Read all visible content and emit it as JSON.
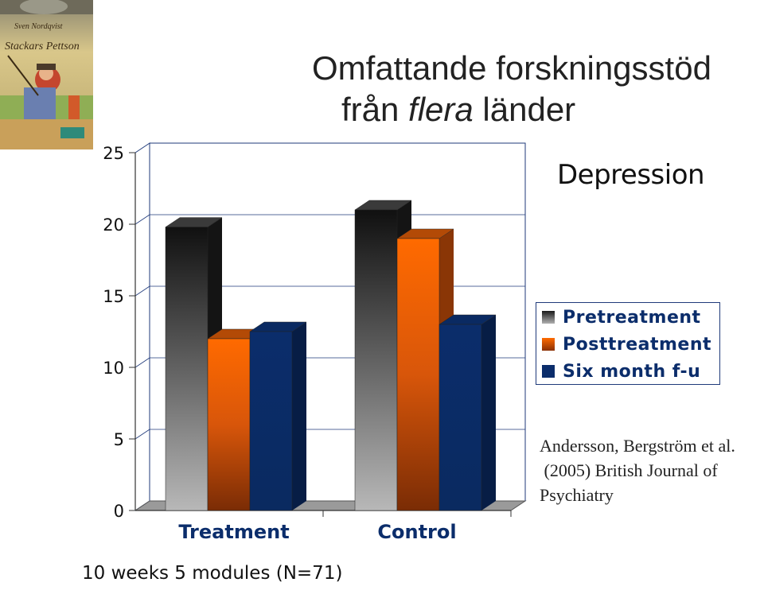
{
  "slide": {
    "title_line1": "Omfattande forskningsstöd",
    "title_line2_pre": "från ",
    "title_line2_em": "flera",
    "title_line2_post": " länder",
    "citation": [
      "Andersson, Bergström et al.",
      " (2005) British Journal of",
      "Psychiatry"
    ],
    "note": "10 weeks 5 modules (N=71)",
    "book_cover": {
      "author": "Sven Nordqvist",
      "title": "Stackars Pettson"
    }
  },
  "chart_data": {
    "type": "bar",
    "title": "Depression",
    "categories": [
      "Treatment",
      "Control"
    ],
    "series": [
      {
        "name": "Pretreatment",
        "values": [
          19.8,
          21.0
        ],
        "color": "#5a5a5a"
      },
      {
        "name": "Posttreatment",
        "values": [
          12.0,
          19.0
        ],
        "color": "#e8640a"
      },
      {
        "name": "Six month f-u",
        "values": [
          12.5,
          13.0
        ],
        "color": "#0b2d6b"
      }
    ],
    "ylim": [
      0,
      25
    ],
    "yticks": [
      0,
      5,
      10,
      15,
      20,
      25
    ],
    "grid": true,
    "legend": "right"
  }
}
